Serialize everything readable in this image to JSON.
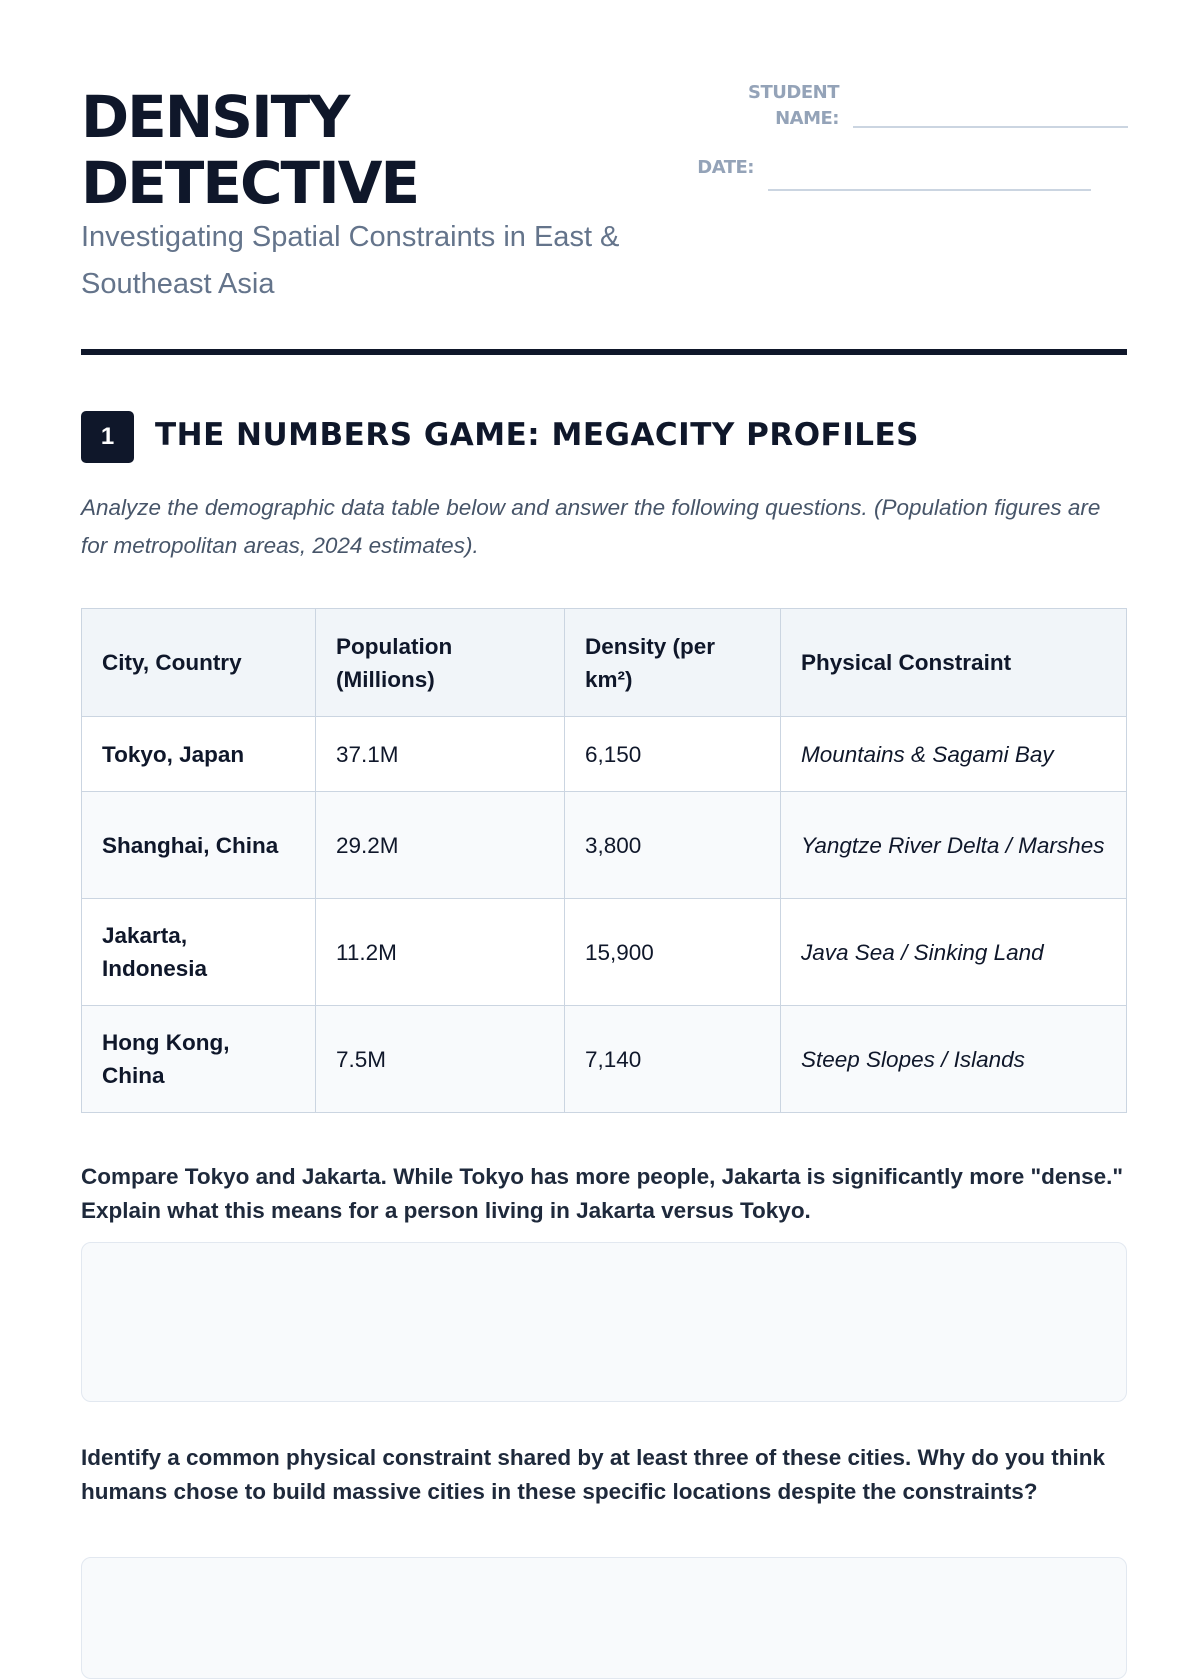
{
  "header": {
    "title_line1": "DENSITY",
    "title_line2": "DETECTIVE",
    "subtitle": "Investigating Spatial Constraints in East & Southeast Asia",
    "student_name_label": "STUDENT NAME:",
    "date_label": "DATE:"
  },
  "section1": {
    "number": "1",
    "title": "THE NUMBERS GAME: MEGACITY PROFILES",
    "instructions": "Analyze the demographic data table below and answer the following questions. (Population figures are for metropolitan areas, 2024 estimates).",
    "table": {
      "headers": [
        "City, Country",
        "Population (Millions)",
        "Density (per km²)",
        "Physical Constraint"
      ],
      "rows": [
        {
          "city": "Tokyo, Japan",
          "population": "37.1M",
          "density": "6,150",
          "constraint": "Mountains & Sagami Bay"
        },
        {
          "city": "Shanghai, China",
          "population": "29.2M",
          "density": "3,800",
          "constraint": "Yangtze River Delta / Marshes"
        },
        {
          "city": "Jakarta, Indonesia",
          "population": "11.2M",
          "density": "15,900",
          "constraint": "Java Sea / Sinking Land"
        },
        {
          "city": "Hong Kong, China",
          "population": "7.5M",
          "density": "7,140",
          "constraint": "Steep Slopes / Islands"
        }
      ]
    },
    "questions": [
      {
        "text": "Compare Tokyo and Jakarta. While Tokyo has more people, Jakarta is significantly more \"dense.\" Explain what this means for a person living in Jakarta versus Tokyo.",
        "answer": ""
      },
      {
        "text": "Identify a common physical constraint shared by at least three of these cities. Why do you think humans chose to build massive cities in these specific locations despite the constraints?",
        "answer": ""
      }
    ]
  }
}
